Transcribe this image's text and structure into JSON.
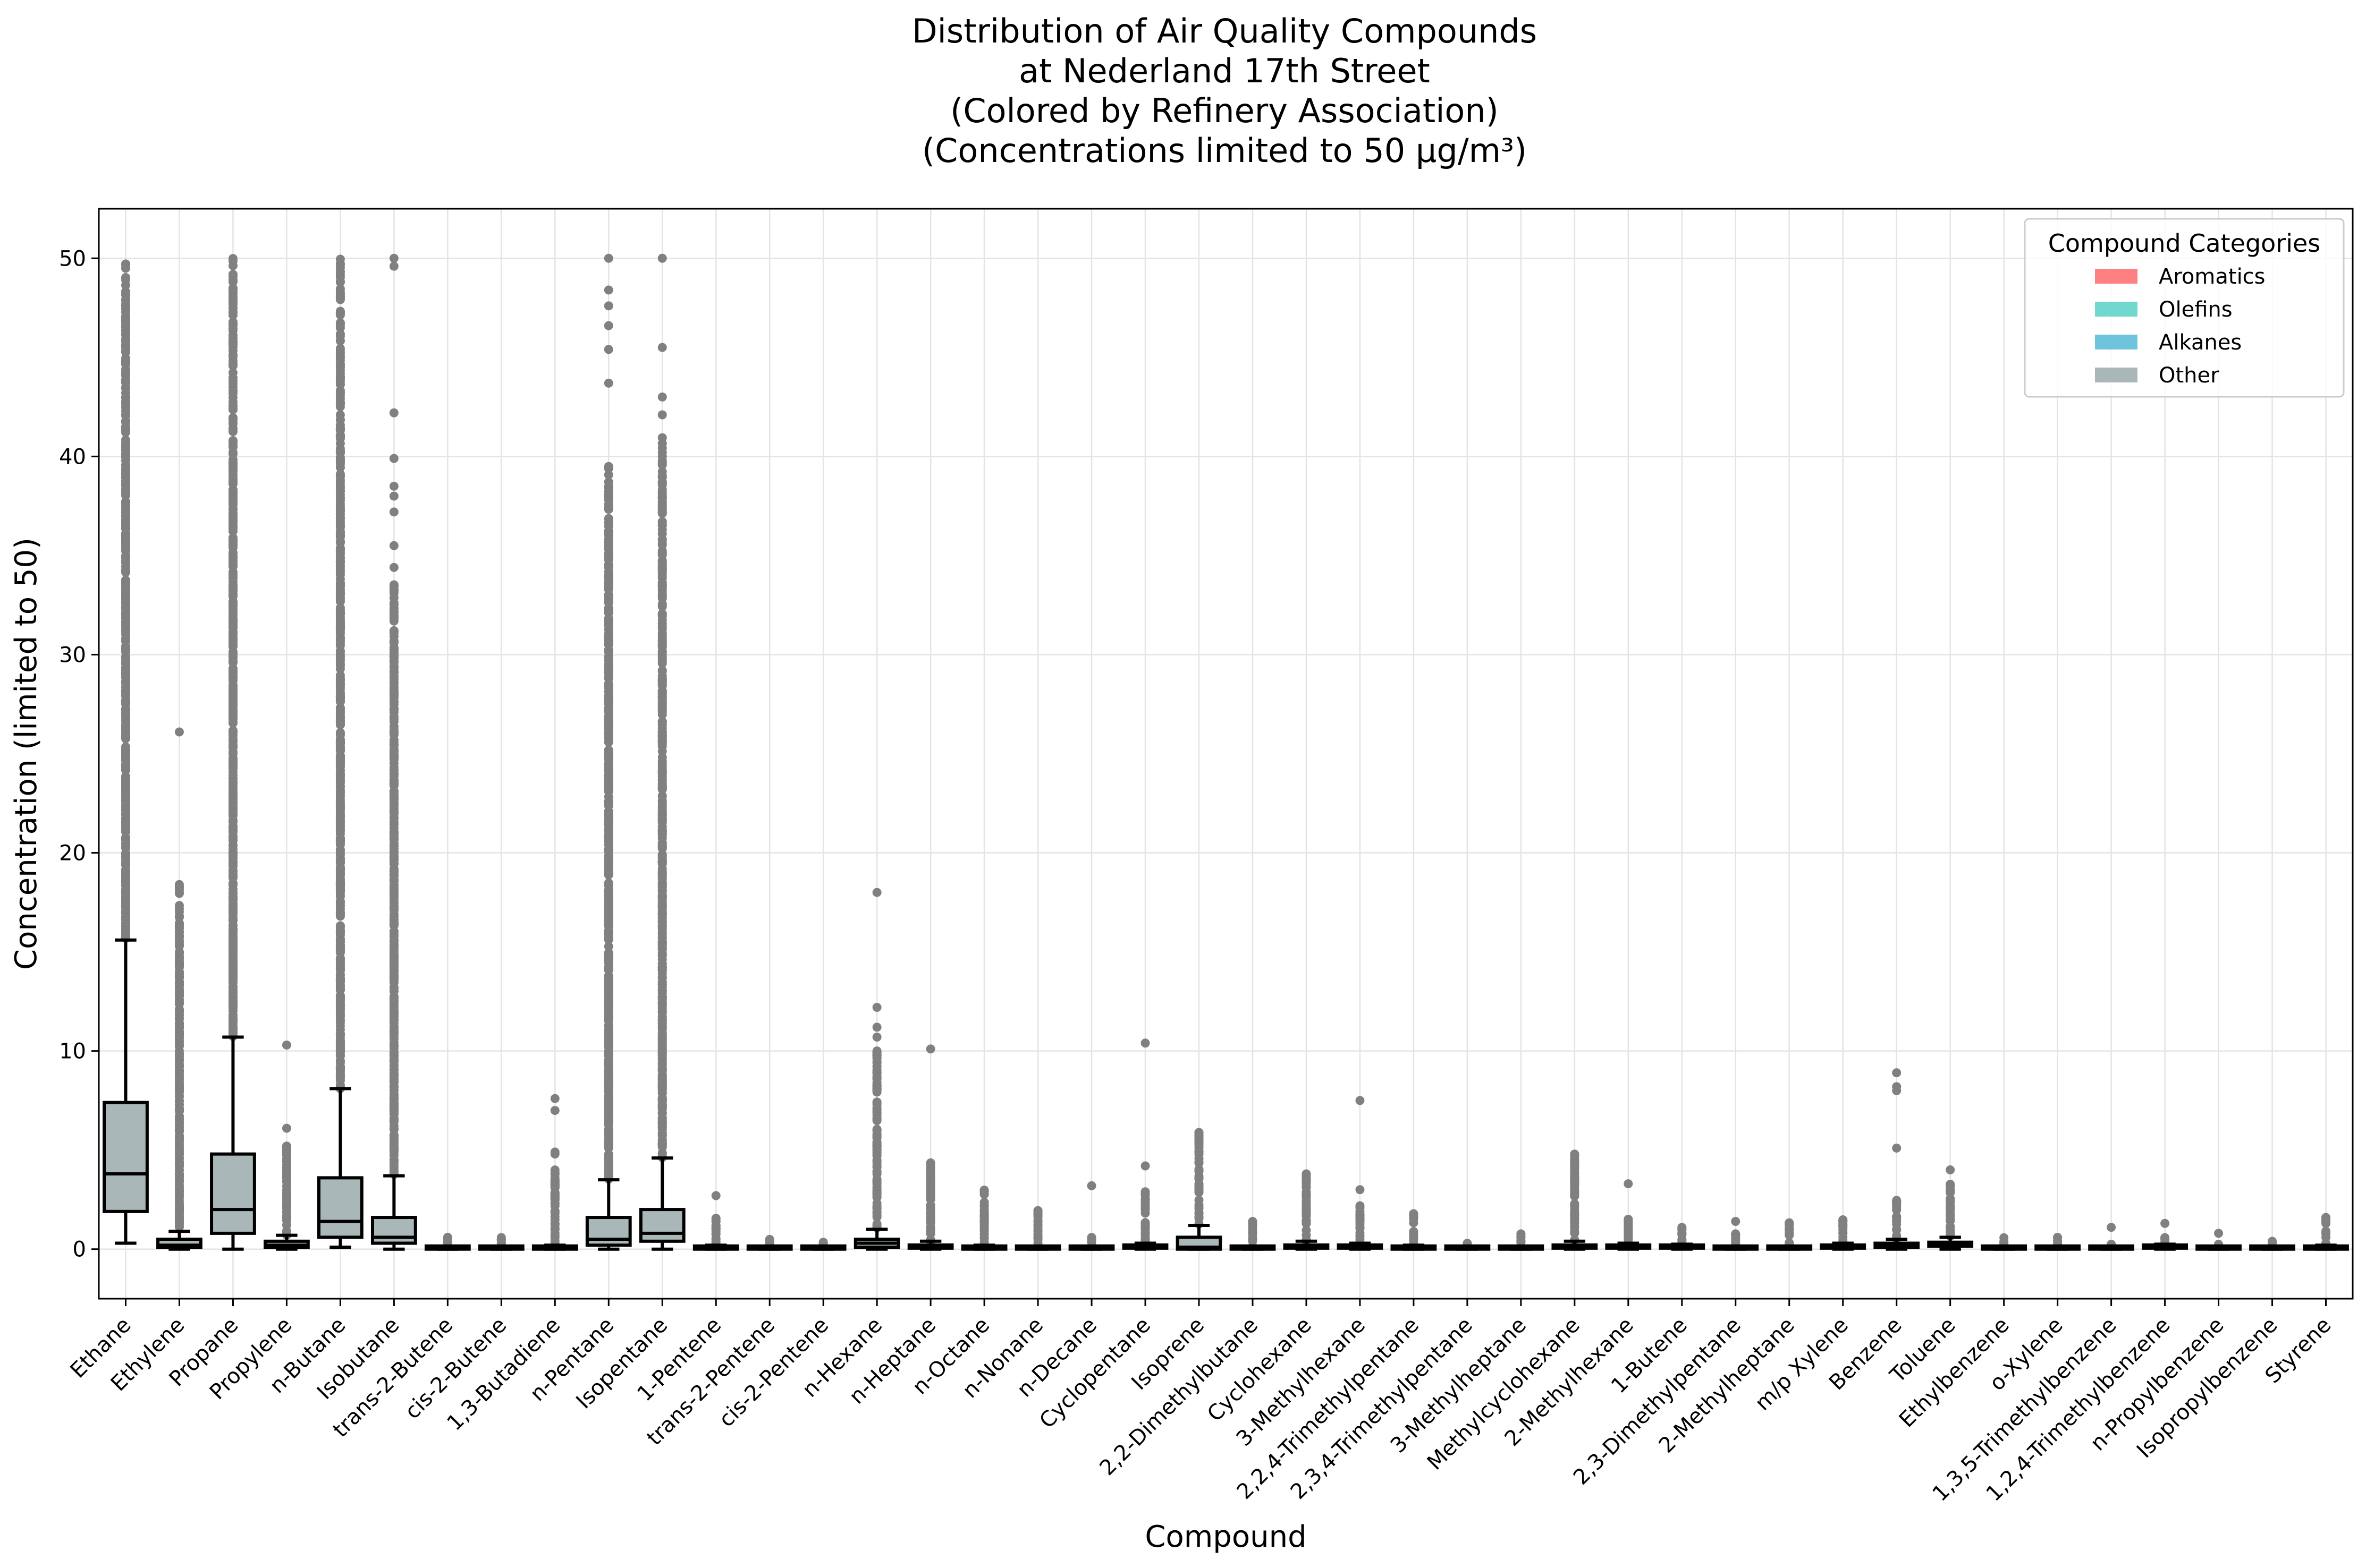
{
  "chart_data": {
    "type": "box",
    "title": [
      "Distribution of Air Quality Compounds",
      "at Nederland 17th Street",
      "(Colored by Refinery Association)",
      "(Concentrations limited to 50 µg/m³)"
    ],
    "xlabel": "Compound",
    "ylabel": "Concentration (limited to 50)",
    "ylim": [
      -2.5,
      52.5
    ],
    "yticks": [
      0,
      10,
      20,
      30,
      40,
      50
    ],
    "grid": true,
    "legend": {
      "title": "Compound Categories",
      "position": "top-right",
      "entries": [
        {
          "label": "Aromatics",
          "color": "#ff8080"
        },
        {
          "label": "Olefins",
          "color": "#70d8cc"
        },
        {
          "label": "Alkanes",
          "color": "#6ec4da"
        },
        {
          "label": "Other",
          "color": "#aab7b8"
        }
      ]
    },
    "box_color": "#aab7b8",
    "outlier_color": "#808080",
    "categories": [
      "Ethane",
      "Ethylene",
      "Propane",
      "Propylene",
      "n-Butane",
      "Isobutane",
      "trans-2-Butene",
      "cis-2-Butene",
      "1,3-Butadiene",
      "n-Pentane",
      "Isopentane",
      "1-Pentene",
      "trans-2-Pentene",
      "cis-2-Pentene",
      "n-Hexane",
      "n-Heptane",
      "n-Octane",
      "n-Nonane",
      "n-Decane",
      "Cyclopentane",
      "Isoprene",
      "2,2-Dimethylbutane",
      "Cyclohexane",
      "3-Methylhexane",
      "2,2,4-Trimethylpentane",
      "2,3,4-Trimethylpentane",
      "3-Methylheptane",
      "Methylcyclohexane",
      "2-Methylhexane",
      "1-Butene",
      "2,3-Dimethylpentane",
      "2-Methylheptane",
      "m/p Xylene",
      "Benzene",
      "Toluene",
      "Ethylbenzene",
      "o-Xylene",
      "1,3,5-Trimethylbenzene",
      "1,2,4-Trimethylbenzene",
      "n-Propylbenzene",
      "Isopropylbenzene",
      "Styrene"
    ],
    "boxes": [
      {
        "whislo": 0.3,
        "q1": 1.9,
        "med": 3.8,
        "q3": 7.4,
        "whishi": 15.6,
        "fliers_range": [
          15.6,
          50
        ]
      },
      {
        "whislo": 0.0,
        "q1": 0.1,
        "med": 0.2,
        "q3": 0.5,
        "whishi": 0.9,
        "fliers_range": [
          0.9,
          18.5
        ],
        "fliers": [
          26.1,
          18.4,
          16.2,
          15.5,
          15.0,
          14.5,
          14.0,
          13.5,
          13.0,
          12.0,
          11.0,
          10.5,
          10.0,
          9.5,
          9.0
        ]
      },
      {
        "whislo": 0.0,
        "q1": 0.8,
        "med": 2.0,
        "q3": 4.8,
        "whishi": 10.7,
        "fliers_range": [
          10.7,
          50
        ]
      },
      {
        "whislo": 0.0,
        "q1": 0.1,
        "med": 0.2,
        "q3": 0.4,
        "whishi": 0.7,
        "fliers_range": [
          0.7,
          5.2
        ],
        "fliers": [
          10.3,
          6.1,
          5.2
        ]
      },
      {
        "whislo": 0.1,
        "q1": 0.6,
        "med": 1.4,
        "q3": 3.6,
        "whishi": 8.1,
        "fliers_range": [
          8.1,
          50
        ]
      },
      {
        "whislo": 0.0,
        "q1": 0.3,
        "med": 0.6,
        "q3": 1.6,
        "whishi": 3.7,
        "fliers_range": [
          3.7,
          34.5
        ],
        "fliers": [
          50.0,
          49.6,
          42.2,
          39.9,
          38.5,
          38.0,
          37.2,
          35.5,
          34.4
        ]
      },
      {
        "whislo": 0.0,
        "q1": 0.0,
        "med": 0.05,
        "q3": 0.1,
        "whishi": 0.15,
        "fliers_range": [
          0.15,
          0.6
        ]
      },
      {
        "whislo": 0.0,
        "q1": 0.0,
        "med": 0.05,
        "q3": 0.1,
        "whishi": 0.15,
        "fliers_range": [
          0.15,
          0.7
        ]
      },
      {
        "whislo": 0.0,
        "q1": 0.0,
        "med": 0.05,
        "q3": 0.1,
        "whishi": 0.2,
        "fliers_range": [
          0.2,
          4.0
        ],
        "fliers": [
          7.6,
          7.0,
          4.9,
          4.8
        ]
      },
      {
        "whislo": 0.0,
        "q1": 0.2,
        "med": 0.5,
        "q3": 1.6,
        "whishi": 3.5,
        "fliers_range": [
          3.5,
          39.5
        ],
        "fliers": [
          50.0,
          48.4,
          47.6,
          46.6,
          45.4,
          43.7
        ]
      },
      {
        "whislo": 0.0,
        "q1": 0.4,
        "med": 0.8,
        "q3": 2.0,
        "whishi": 4.6,
        "fliers_range": [
          4.6,
          41.0
        ],
        "fliers": [
          50.0,
          45.5,
          43.0,
          42.1
        ]
      },
      {
        "whislo": 0.0,
        "q1": 0.0,
        "med": 0.05,
        "q3": 0.1,
        "whishi": 0.2,
        "fliers_range": [
          0.2,
          1.6
        ],
        "fliers": [
          2.7
        ]
      },
      {
        "whislo": 0.0,
        "q1": 0.0,
        "med": 0.05,
        "q3": 0.1,
        "whishi": 0.15,
        "fliers_range": [
          0.15,
          0.5
        ]
      },
      {
        "whislo": 0.0,
        "q1": 0.0,
        "med": 0.05,
        "q3": 0.1,
        "whishi": 0.15,
        "fliers_range": [
          0.15,
          0.35
        ]
      },
      {
        "whislo": 0.0,
        "q1": 0.1,
        "med": 0.3,
        "q3": 0.5,
        "whishi": 1.0,
        "fliers_range": [
          1.0,
          10.0
        ],
        "fliers": [
          18.0,
          12.2,
          11.2,
          10.7
        ]
      },
      {
        "whislo": 0.0,
        "q1": 0.05,
        "med": 0.1,
        "q3": 0.2,
        "whishi": 0.4,
        "fliers_range": [
          0.4,
          4.5
        ],
        "fliers": [
          10.1
        ]
      },
      {
        "whislo": 0.0,
        "q1": 0.0,
        "med": 0.05,
        "q3": 0.1,
        "whishi": 0.2,
        "fliers_range": [
          0.2,
          3.0
        ]
      },
      {
        "whislo": 0.0,
        "q1": 0.0,
        "med": 0.05,
        "q3": 0.1,
        "whishi": 0.15,
        "fliers_range": [
          0.15,
          2.0
        ]
      },
      {
        "whislo": 0.0,
        "q1": 0.0,
        "med": 0.05,
        "q3": 0.1,
        "whishi": 0.15,
        "fliers_range": [
          0.15,
          0.6
        ],
        "fliers": [
          3.2
        ]
      },
      {
        "whislo": 0.0,
        "q1": 0.05,
        "med": 0.1,
        "q3": 0.2,
        "whishi": 0.3,
        "fliers_range": [
          0.3,
          2.9
        ],
        "fliers": [
          10.4,
          4.2
        ]
      },
      {
        "whislo": 0.0,
        "q1": 0.0,
        "med": 0.1,
        "q3": 0.6,
        "whishi": 1.2,
        "fliers_range": [
          1.2,
          5.9
        ]
      },
      {
        "whislo": 0.0,
        "q1": 0.0,
        "med": 0.05,
        "q3": 0.1,
        "whishi": 0.15,
        "fliers_range": [
          0.15,
          1.4
        ]
      },
      {
        "whislo": 0.0,
        "q1": 0.05,
        "med": 0.1,
        "q3": 0.2,
        "whishi": 0.4,
        "fliers_range": [
          0.4,
          3.8
        ]
      },
      {
        "whislo": 0.0,
        "q1": 0.05,
        "med": 0.1,
        "q3": 0.2,
        "whishi": 0.3,
        "fliers_range": [
          0.3,
          2.2
        ],
        "fliers": [
          7.5,
          3.0
        ]
      },
      {
        "whislo": 0.0,
        "q1": 0.0,
        "med": 0.05,
        "q3": 0.1,
        "whishi": 0.2,
        "fliers_range": [
          0.2,
          1.8
        ]
      },
      {
        "whislo": 0.0,
        "q1": 0.0,
        "med": 0.03,
        "q3": 0.05,
        "whishi": 0.1,
        "fliers_range": [
          0.1,
          0.3
        ]
      },
      {
        "whislo": 0.0,
        "q1": 0.0,
        "med": 0.05,
        "q3": 0.1,
        "whishi": 0.15,
        "fliers_range": [
          0.15,
          0.8
        ]
      },
      {
        "whislo": 0.0,
        "q1": 0.05,
        "med": 0.1,
        "q3": 0.2,
        "whishi": 0.4,
        "fliers_range": [
          0.4,
          4.8
        ]
      },
      {
        "whislo": 0.0,
        "q1": 0.05,
        "med": 0.1,
        "q3": 0.15,
        "whishi": 0.3,
        "fliers_range": [
          0.3,
          1.6
        ],
        "fliers": [
          3.3
        ]
      },
      {
        "whislo": 0.0,
        "q1": 0.05,
        "med": 0.1,
        "q3": 0.15,
        "whishi": 0.25,
        "fliers_range": [
          0.25,
          1.1
        ]
      },
      {
        "whislo": 0.0,
        "q1": 0.0,
        "med": 0.05,
        "q3": 0.1,
        "whishi": 0.15,
        "fliers_range": [
          0.15,
          0.8
        ],
        "fliers": [
          1.4
        ]
      },
      {
        "whislo": 0.0,
        "q1": 0.0,
        "med": 0.05,
        "q3": 0.1,
        "whishi": 0.15,
        "fliers_range": [
          0.15,
          1.4
        ]
      },
      {
        "whislo": 0.0,
        "q1": 0.05,
        "med": 0.1,
        "q3": 0.2,
        "whishi": 0.3,
        "fliers_range": [
          0.3,
          1.5
        ]
      },
      {
        "whislo": 0.0,
        "q1": 0.1,
        "med": 0.2,
        "q3": 0.3,
        "whishi": 0.5,
        "fliers_range": [
          0.5,
          2.5
        ],
        "fliers": [
          8.9,
          8.2,
          8.0,
          5.1
        ]
      },
      {
        "whislo": 0.0,
        "q1": 0.15,
        "med": 0.25,
        "q3": 0.35,
        "whishi": 0.6,
        "fliers_range": [
          0.6,
          3.3
        ],
        "fliers": [
          4.0
        ]
      },
      {
        "whislo": 0.0,
        "q1": 0.0,
        "med": 0.05,
        "q3": 0.1,
        "whishi": 0.15,
        "fliers_range": [
          0.15,
          0.6
        ]
      },
      {
        "whislo": 0.0,
        "q1": 0.0,
        "med": 0.05,
        "q3": 0.1,
        "whishi": 0.15,
        "fliers_range": [
          0.15,
          0.6
        ]
      },
      {
        "whislo": 0.0,
        "q1": 0.0,
        "med": 0.05,
        "q3": 0.1,
        "whishi": 0.15,
        "fliers_range": [
          0.15,
          0.3
        ],
        "fliers": [
          1.1
        ]
      },
      {
        "whislo": 0.0,
        "q1": 0.05,
        "med": 0.1,
        "q3": 0.15,
        "whishi": 0.25,
        "fliers_range": [
          0.25,
          0.7
        ],
        "fliers": [
          1.3
        ]
      },
      {
        "whislo": 0.0,
        "q1": 0.0,
        "med": 0.05,
        "q3": 0.1,
        "whishi": 0.15,
        "fliers_range": [
          0.15,
          0.3
        ],
        "fliers": [
          0.8
        ]
      },
      {
        "whislo": 0.0,
        "q1": 0.0,
        "med": 0.03,
        "q3": 0.05,
        "whishi": 0.1,
        "fliers_range": [
          0.1,
          0.4
        ]
      },
      {
        "whislo": 0.0,
        "q1": 0.0,
        "med": 0.05,
        "q3": 0.1,
        "whishi": 0.2,
        "fliers_range": [
          0.2,
          1.6
        ]
      }
    ]
  }
}
